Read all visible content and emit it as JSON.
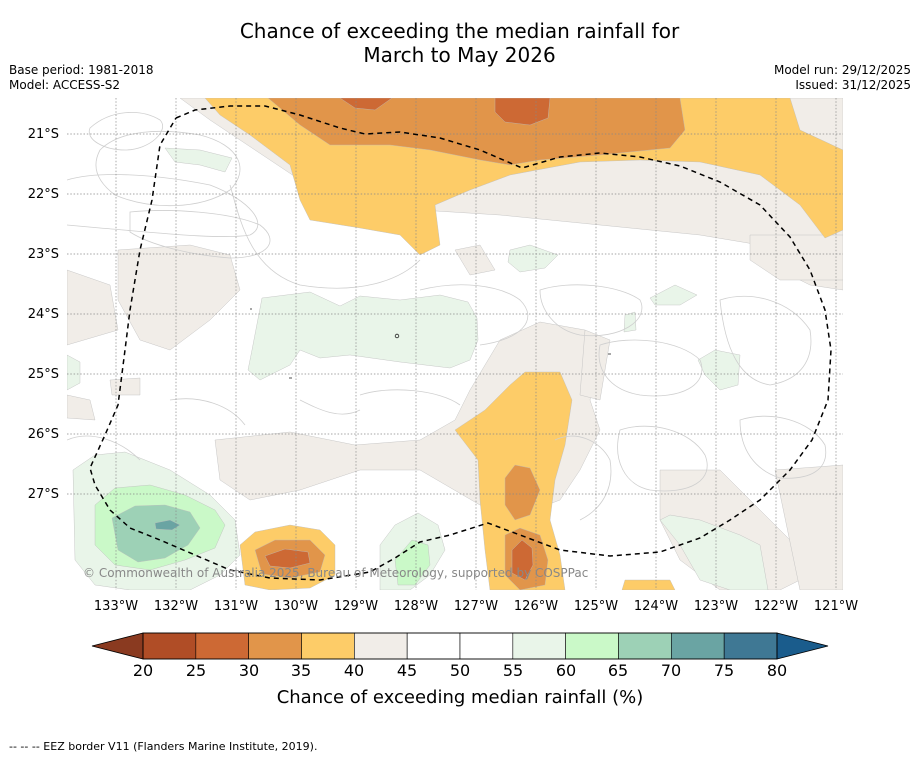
{
  "title": {
    "line1": "Chance of exceeding the median rainfall for",
    "line2": "March to May 2026"
  },
  "meta_left": {
    "base_period": "Base period: 1981-2018",
    "model": "Model: ACCESS-S2"
  },
  "meta_right": {
    "model_run": "Model run: 29/12/2025",
    "issued": "Issued: 31/12/2025"
  },
  "map": {
    "lat_labels": [
      "21°S",
      "22°S",
      "23°S",
      "24°S",
      "25°S",
      "26°S",
      "27°S"
    ],
    "lon_labels": [
      "133°W",
      "132°W",
      "131°W",
      "130°W",
      "129°W",
      "128°W",
      "127°W",
      "126°W",
      "125°W",
      "124°W",
      "123°W",
      "122°W",
      "121°W"
    ],
    "credit": "© Commonwealth of Australia 2025, Bureau of Meteorology, supported by COSPPac",
    "colors": {
      "c25_30": "#cd6934",
      "c30_35": "#e1954a",
      "c35_40": "#fdcc68",
      "c40_45": "#f1ede8",
      "c55_60": "#e9f5e9",
      "c60_65": "#caf9c8",
      "c65_70": "#9dd1b6",
      "c70_75": "#6aa4a3"
    }
  },
  "colorbar": {
    "labels": [
      "20",
      "25",
      "30",
      "35",
      "40",
      "45",
      "50",
      "55",
      "60",
      "65",
      "70",
      "75",
      "80"
    ],
    "title": "Chance of exceeding median rainfall (%)",
    "colors": [
      "#8a3a20",
      "#b04d26",
      "#cd6934",
      "#e1954a",
      "#fdcc68",
      "#f1ede8",
      "#ffffff",
      "#ffffff",
      "#e9f5e9",
      "#caf9c8",
      "#9dd1b6",
      "#6aa4a3",
      "#3f7894",
      "#1a5c8c"
    ]
  },
  "footer": "-- -- -- EEZ border V11 (Flanders Marine Institute, 2019)."
}
